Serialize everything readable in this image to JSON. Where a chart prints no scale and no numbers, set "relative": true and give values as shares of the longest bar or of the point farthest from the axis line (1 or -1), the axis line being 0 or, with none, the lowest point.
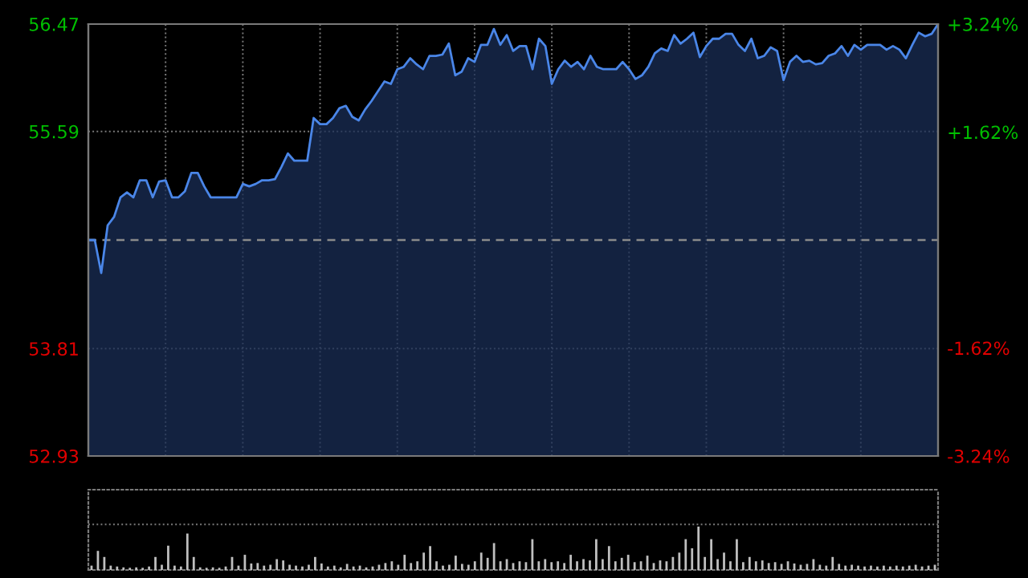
{
  "chart_data": [
    {
      "type": "area",
      "categories": [
        null,
        null,
        null,
        null,
        null,
        null,
        null,
        null,
        null,
        null,
        null,
        null,
        null,
        null,
        null,
        null,
        null,
        null,
        null,
        null,
        null,
        null,
        null,
        null,
        null,
        null,
        null,
        null,
        null,
        null,
        null,
        null,
        null,
        null,
        null,
        null,
        null,
        null,
        null,
        null,
        null,
        null,
        null,
        null,
        null,
        null,
        null,
        null,
        null,
        null,
        null,
        null,
        null,
        null,
        null,
        null,
        null,
        null,
        null,
        null,
        null,
        null,
        null,
        null,
        null,
        null,
        null,
        null,
        null,
        null,
        null,
        null,
        null,
        null,
        null,
        null,
        null,
        null,
        null,
        null,
        null,
        null,
        null,
        null,
        null,
        null,
        null,
        null,
        null,
        null,
        null,
        null,
        null,
        null,
        null,
        null,
        null,
        null,
        null,
        null,
        null,
        null,
        null,
        null,
        null,
        null,
        null,
        null,
        null,
        null,
        null,
        null,
        null,
        null,
        null,
        null,
        null,
        null,
        null,
        null,
        null,
        null,
        null,
        null,
        null,
        null,
        null,
        null,
        null,
        null,
        null,
        null,
        null
      ],
      "series": [
        {
          "color": "#4a86e8",
          "values": [
            54.7,
            54.7,
            54.43,
            54.82,
            54.89,
            55.05,
            55.09,
            55.05,
            55.19,
            55.19,
            55.05,
            55.18,
            55.19,
            55.05,
            55.05,
            55.1,
            55.25,
            55.25,
            55.14,
            55.05,
            55.05,
            55.05,
            55.05,
            55.05,
            55.16,
            55.14,
            55.16,
            55.19,
            55.19,
            55.2,
            55.3,
            55.41,
            55.35,
            55.35,
            55.35,
            55.7,
            55.65,
            55.65,
            55.7,
            55.78,
            55.8,
            55.71,
            55.68,
            55.77,
            55.84,
            55.92,
            56.0,
            55.98,
            56.1,
            56.12,
            56.19,
            56.14,
            56.1,
            56.21,
            56.21,
            56.22,
            56.31,
            56.05,
            56.08,
            56.19,
            56.16,
            56.3,
            56.3,
            56.43,
            56.3,
            56.38,
            56.25,
            56.29,
            56.29,
            56.1,
            56.35,
            56.29,
            55.98,
            56.1,
            56.17,
            56.12,
            56.16,
            56.1,
            56.21,
            56.12,
            56.1,
            56.1,
            56.1,
            56.16,
            56.1,
            56.02,
            56.05,
            56.12,
            56.23,
            56.27,
            56.25,
            56.38,
            56.31,
            56.35,
            56.4,
            56.2,
            56.29,
            56.35,
            56.35,
            56.39,
            56.39,
            56.3,
            56.25,
            56.35,
            56.19,
            56.21,
            56.28,
            56.25,
            56.01,
            56.16,
            56.21,
            56.16,
            56.17,
            56.14,
            56.15,
            56.21,
            56.23,
            56.29,
            56.21,
            56.3,
            56.26,
            56.3,
            56.3,
            56.3,
            56.26,
            56.29,
            56.26,
            56.19,
            56.3,
            56.4,
            56.37,
            56.39,
            56.47
          ]
        }
      ],
      "ylim": [
        52.93,
        56.47
      ],
      "yticks": [
        56.47,
        55.59,
        53.81,
        52.93
      ],
      "y2lim": [
        -3.24,
        3.24
      ],
      "y2ticks": [
        {
          "value": 3.24,
          "label": "+3.24%"
        },
        {
          "value": 1.62,
          "label": "+1.62%"
        },
        {
          "value": -1.62,
          "label": "-1.62%"
        },
        {
          "value": -3.24,
          "label": "-3.24%"
        }
      ],
      "ref_lines": [
        {
          "axis": "y",
          "value": 54.7,
          "color": "#8a8a8a",
          "line_style": "dashed"
        }
      ],
      "grid": true
    },
    {
      "type": "bar",
      "relative": true,
      "color": "#bfbfbf",
      "grid": "y",
      "categories": [
        null,
        null,
        null,
        null,
        null,
        null,
        null,
        null,
        null,
        null,
        null,
        null,
        null,
        null,
        null,
        null,
        null,
        null,
        null,
        null,
        null,
        null,
        null,
        null,
        null,
        null,
        null,
        null,
        null,
        null,
        null,
        null,
        null,
        null,
        null,
        null,
        null,
        null,
        null,
        null,
        null,
        null,
        null,
        null,
        null,
        null,
        null,
        null,
        null,
        null,
        null,
        null,
        null,
        null,
        null,
        null,
        null,
        null,
        null,
        null,
        null,
        null,
        null,
        null,
        null,
        null,
        null,
        null,
        null,
        null,
        null,
        null,
        null,
        null,
        null,
        null,
        null,
        null,
        null,
        null,
        null,
        null,
        null,
        null,
        null,
        null,
        null,
        null,
        null,
        null,
        null,
        null,
        null,
        null,
        null,
        null,
        null,
        null,
        null,
        null,
        null,
        null,
        null,
        null,
        null,
        null,
        null,
        null,
        null,
        null,
        null,
        null,
        null,
        null,
        null,
        null,
        null,
        null,
        null,
        null,
        null,
        null,
        null,
        null,
        null,
        null,
        null,
        null,
        null,
        null,
        null,
        null,
        null
      ],
      "values": [
        0.1,
        0.44,
        0.3,
        0.1,
        0.08,
        0.06,
        0.05,
        0.06,
        0.05,
        0.08,
        0.3,
        0.12,
        0.56,
        0.1,
        0.08,
        0.84,
        0.3,
        0.06,
        0.05,
        0.06,
        0.05,
        0.08,
        0.3,
        0.1,
        0.35,
        0.15,
        0.16,
        0.1,
        0.12,
        0.25,
        0.22,
        0.12,
        0.1,
        0.08,
        0.12,
        0.3,
        0.15,
        0.08,
        0.1,
        0.06,
        0.14,
        0.08,
        0.1,
        0.06,
        0.08,
        0.12,
        0.16,
        0.2,
        0.12,
        0.35,
        0.16,
        0.2,
        0.4,
        0.55,
        0.2,
        0.1,
        0.12,
        0.33,
        0.14,
        0.12,
        0.2,
        0.4,
        0.28,
        0.62,
        0.2,
        0.25,
        0.16,
        0.2,
        0.18,
        0.71,
        0.2,
        0.25,
        0.18,
        0.2,
        0.16,
        0.35,
        0.2,
        0.25,
        0.22,
        0.71,
        0.25,
        0.55,
        0.2,
        0.28,
        0.35,
        0.18,
        0.2,
        0.33,
        0.16,
        0.22,
        0.2,
        0.3,
        0.4,
        0.71,
        0.5,
        1.0,
        0.3,
        0.71,
        0.25,
        0.4,
        0.2,
        0.71,
        0.18,
        0.3,
        0.2,
        0.22,
        0.16,
        0.18,
        0.14,
        0.2,
        0.15,
        0.12,
        0.14,
        0.25,
        0.12,
        0.1,
        0.3,
        0.14,
        0.1,
        0.12,
        0.1,
        0.08,
        0.1,
        0.08,
        0.1,
        0.08,
        0.1,
        0.08,
        0.1,
        0.12,
        0.08,
        0.1,
        0.12
      ]
    }
  ]
}
